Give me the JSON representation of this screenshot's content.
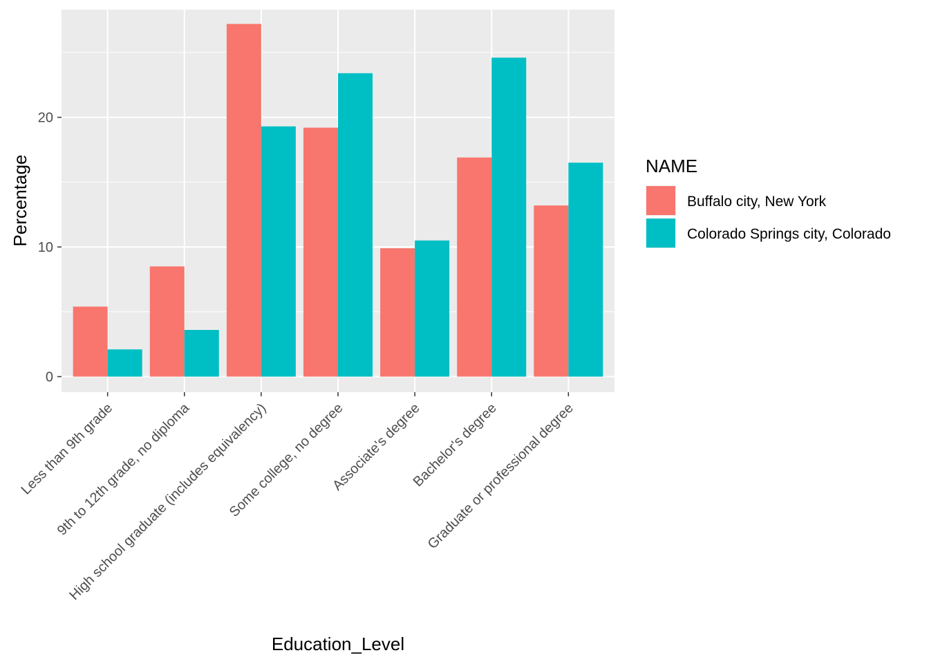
{
  "chart_data": {
    "type": "bar",
    "title": "",
    "xlabel": "Education_Level",
    "ylabel": "Percentage",
    "ylim": [
      -1.2,
      28.3
    ],
    "yticks": [
      0,
      10,
      20
    ],
    "grid": true,
    "legend_title": "NAME",
    "legend_position": "right",
    "categories": [
      "Less than 9th grade",
      "9th to 12th grade, no diploma",
      "High school graduate (includes equivalency)",
      "Some college, no degree",
      "Associate's degree",
      "Bachelor's degree",
      "Graduate or professional degree"
    ],
    "series": [
      {
        "name": "Buffalo city, New York",
        "color": "#F8766D",
        "values": [
          5.4,
          8.5,
          27.2,
          19.2,
          9.9,
          16.9,
          13.2
        ]
      },
      {
        "name": "Colorado Springs city, Colorado",
        "color": "#00BFC4",
        "values": [
          2.1,
          3.6,
          19.3,
          23.4,
          10.5,
          24.6,
          16.5
        ]
      }
    ]
  }
}
